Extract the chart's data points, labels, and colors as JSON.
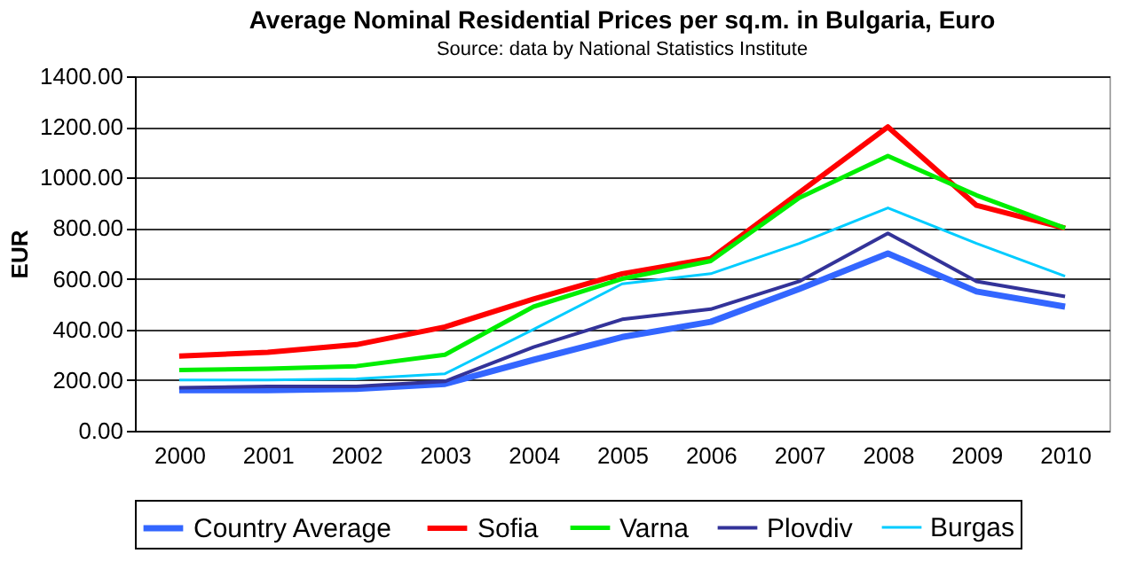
{
  "chart_data": {
    "type": "line",
    "title": "Average Nominal Residential Prices per sq.m. in Bulgaria, Euro",
    "subtitle": "Source: data by National Statistics Institute",
    "ylabel": "EUR",
    "categories": [
      "2000",
      "2001",
      "2002",
      "2003",
      "2004",
      "2005",
      "2006",
      "2007",
      "2008",
      "2009",
      "2010"
    ],
    "series": [
      {
        "name": "Country Average",
        "color": "#3366ff",
        "values": [
          160,
          160,
          165,
          185,
          280,
          370,
          430,
          560,
          700,
          550,
          490
        ]
      },
      {
        "name": "Sofia",
        "color": "#ff0000",
        "values": [
          295,
          310,
          340,
          410,
          520,
          620,
          680,
          940,
          1200,
          890,
          800
        ]
      },
      {
        "name": "Varna",
        "color": "#00ee00",
        "values": [
          240,
          245,
          255,
          300,
          490,
          600,
          670,
          920,
          1085,
          930,
          800
        ]
      },
      {
        "name": "Plovdiv",
        "color": "#333399",
        "values": [
          170,
          175,
          175,
          195,
          330,
          440,
          480,
          590,
          780,
          590,
          530
        ]
      },
      {
        "name": "Burgas",
        "color": "#00ccff",
        "values": [
          200,
          200,
          205,
          225,
          400,
          580,
          620,
          740,
          880,
          740,
          610
        ]
      }
    ],
    "ylim": [
      0,
      1400
    ],
    "yticks": [
      {
        "value": 0,
        "label": "0.00"
      },
      {
        "value": 200,
        "label": "200.00"
      },
      {
        "value": 400,
        "label": "400.00"
      },
      {
        "value": 600,
        "label": "600.00"
      },
      {
        "value": 800,
        "label": "800.00"
      },
      {
        "value": 1000,
        "label": "1000.00"
      },
      {
        "value": 1200,
        "label": "1200.00"
      },
      {
        "value": 1400,
        "label": "1400.00"
      }
    ],
    "grid": "y",
    "legend": "bottom",
    "marker": "none",
    "line_style": "solid"
  }
}
